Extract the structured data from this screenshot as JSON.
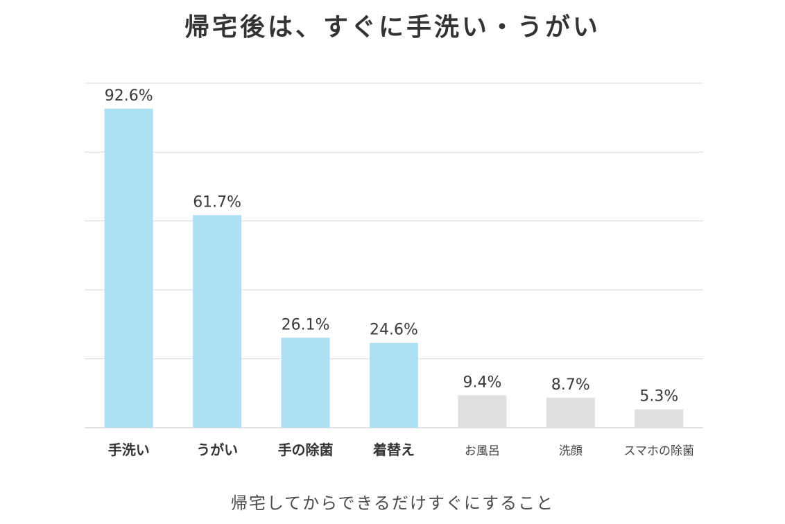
{
  "chart_data": {
    "type": "bar",
    "title": "帰宅後は、すぐに手洗い・うがい",
    "xlabel": "帰宅してからできるだけすぐにすること",
    "ylabel": "",
    "ylim": [
      0,
      100
    ],
    "grid": true,
    "categories": [
      "手洗い",
      "うがい",
      "手の除菌",
      "着替え",
      "お風呂",
      "洗顔",
      "スマホの除菌"
    ],
    "values": [
      92.6,
      61.7,
      26.1,
      24.6,
      9.4,
      8.7,
      5.3
    ],
    "value_labels": [
      "92.6%",
      "61.7%",
      "26.1%",
      "24.6%",
      "9.4%",
      "8.7%",
      "5.3%"
    ],
    "highlighted": [
      true,
      true,
      true,
      true,
      false,
      false,
      false
    ],
    "colors": {
      "highlight": "#aedff5",
      "muted": "#e0e0e0",
      "grid": "#d8d8d8"
    }
  }
}
